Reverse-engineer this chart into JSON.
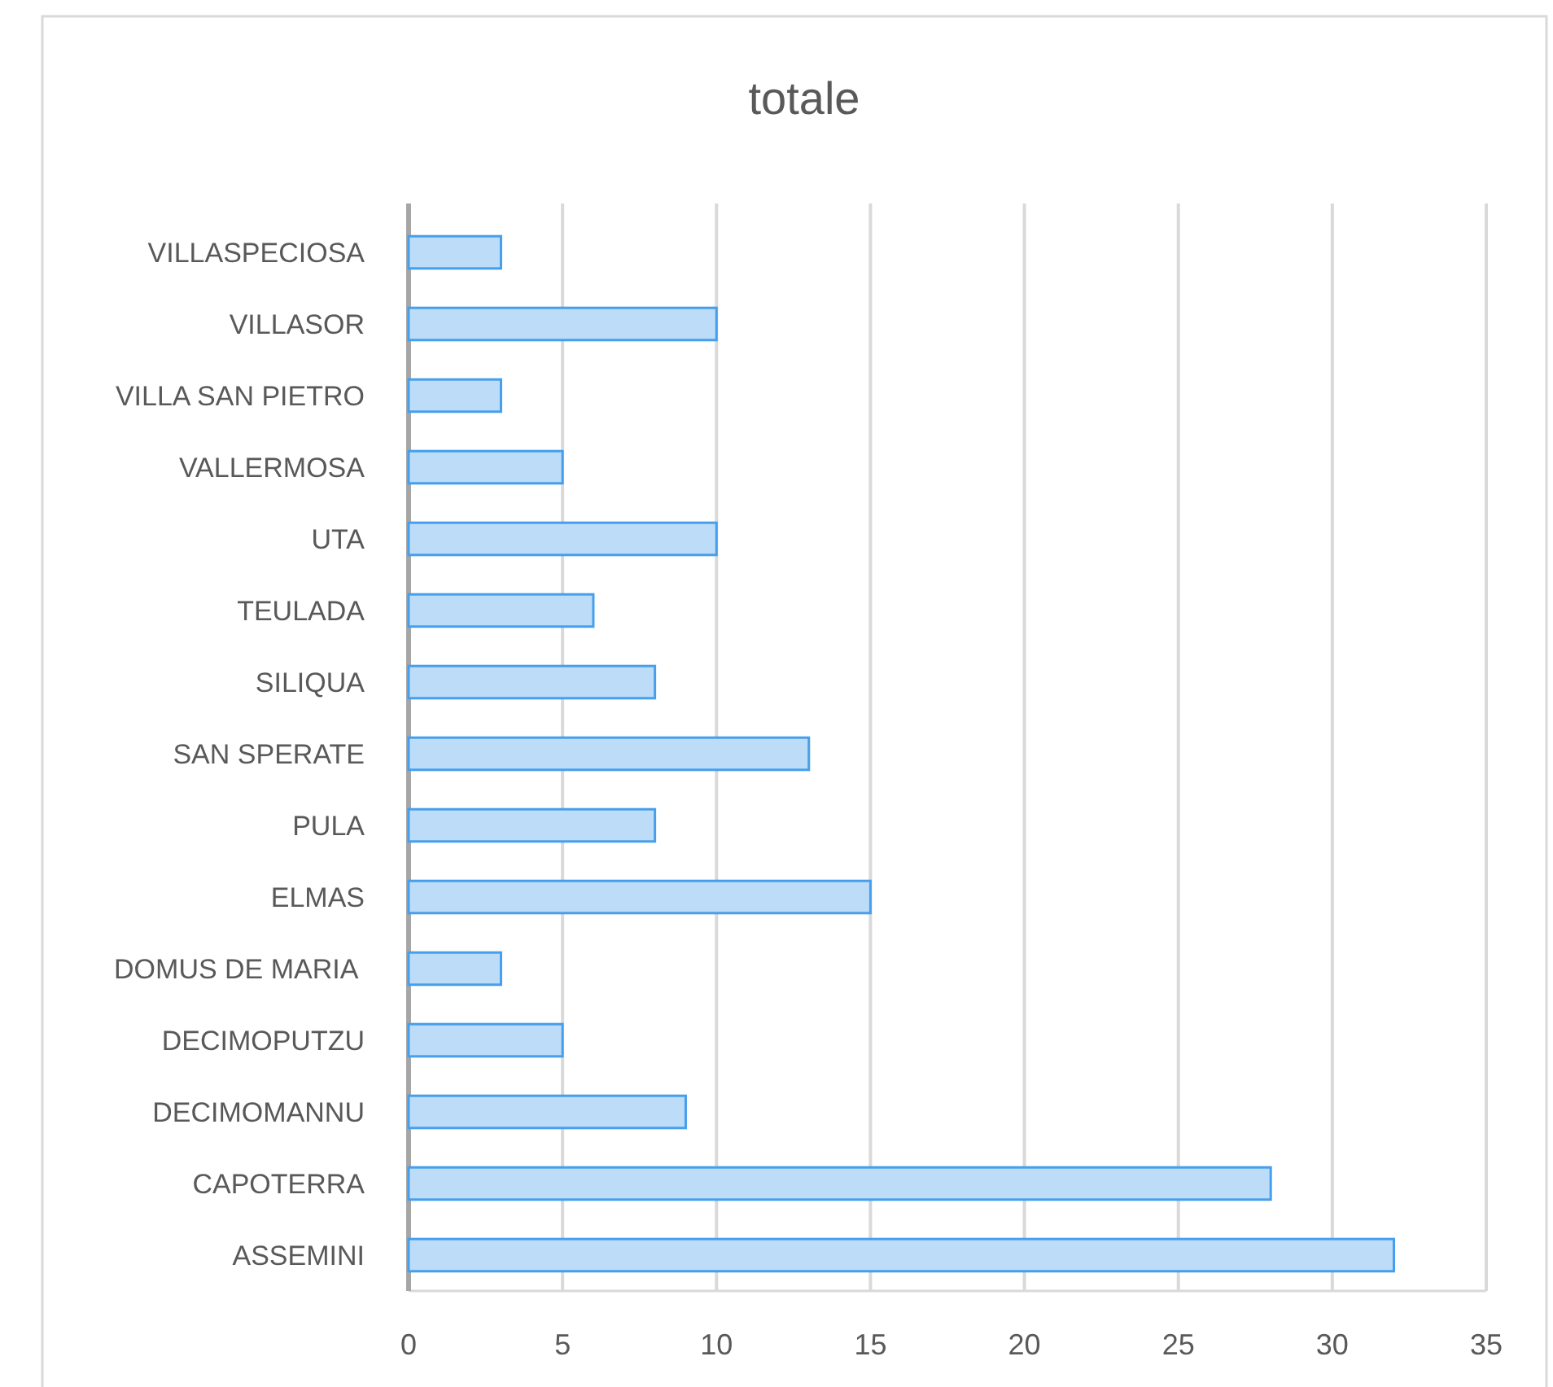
{
  "chart_data": {
    "type": "bar",
    "orientation": "horizontal",
    "title": "totale",
    "categories": [
      "VILLASPECIOSA",
      "VILLASOR",
      "VILLA SAN PIETRO",
      "VALLERMOSA",
      "UTA",
      "TEULADA",
      "SILIQUA",
      "SAN SPERATE",
      "PULA",
      "ELMAS",
      "DOMUS DE MARIA ",
      "DECIMOPUTZU",
      "DECIMOMANNU",
      "CAPOTERRA",
      "ASSEMINI"
    ],
    "values": [
      3,
      10,
      3,
      5,
      10,
      6,
      8,
      13,
      8,
      15,
      3,
      5,
      9,
      28,
      32
    ],
    "color": "#bcdcf8",
    "xlim": [
      0,
      35
    ],
    "xticks": [
      0,
      5,
      10,
      15,
      20,
      25,
      30,
      35
    ],
    "grid": "x"
  }
}
